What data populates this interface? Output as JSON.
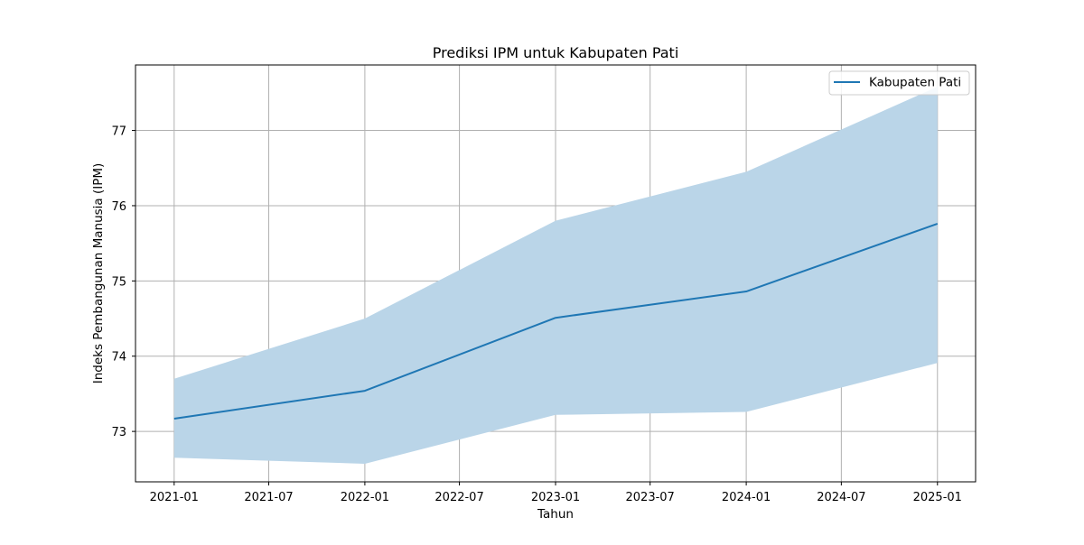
{
  "chart_data": {
    "type": "line",
    "title": "Prediksi IPM untuk Kabupaten Pati",
    "xlabel": "Tahun",
    "ylabel": "Indeks Pembangunan Manusia (IPM)",
    "x": [
      "2021-01-01",
      "2022-01-01",
      "2023-01-01",
      "2024-01-01",
      "2025-01-01"
    ],
    "series": [
      {
        "name": "Kabupaten Pati",
        "values": [
          73.17,
          73.54,
          74.51,
          74.86,
          75.76
        ],
        "lower": [
          72.65,
          72.57,
          73.22,
          73.26,
          73.91
        ],
        "upper": [
          73.7,
          74.5,
          75.8,
          76.45,
          77.58
        ],
        "color": "#1f77b4",
        "band_color": "#bad5e8"
      }
    ],
    "xticks": [
      "2021-01",
      "2021-07",
      "2022-01",
      "2022-07",
      "2023-01",
      "2023-07",
      "2024-01",
      "2024-07",
      "2025-01"
    ],
    "yticks": [
      "73",
      "74",
      "75",
      "76",
      "77"
    ],
    "xlim": [
      "2020-10-19",
      "2025-03-15"
    ],
    "ylim": [
      72.33,
      77.87
    ],
    "grid": true,
    "legend_position": "upper right"
  }
}
